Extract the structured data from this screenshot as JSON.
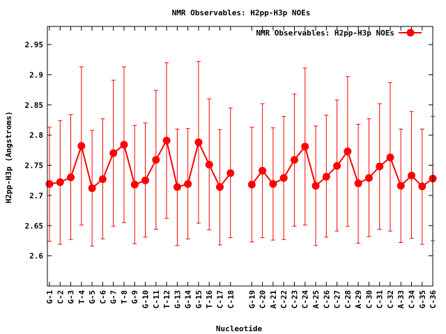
{
  "chart_data": {
    "type": "line",
    "title": "NMR Observables: H2pp-H3p NOEs",
    "xlabel": "Nucleotide",
    "ylabel": "H2pp-H3p (Angstroms)",
    "ylim": [
      2.55,
      2.98
    ],
    "yticks": [
      2.6,
      2.65,
      2.7,
      2.75,
      2.8,
      2.85,
      2.9,
      2.95
    ],
    "ytick_labels": [
      "2.6",
      "2.65",
      "2.7",
      "2.75",
      "2.8",
      "2.85",
      "2.9",
      "2.95"
    ],
    "grid": false,
    "legend_position": "top-right",
    "line_color": "#ff0000",
    "categories": [
      "G-1",
      "C-2",
      "G-3",
      "T-4",
      "G-5",
      "C-6",
      "G-7",
      "T-8",
      "G-9",
      "G-10",
      "C-11",
      "T-12",
      "G-13",
      "G-14",
      "G-15",
      "T-16",
      "C-17",
      "C-18",
      "G-19",
      "C-20",
      "A-21",
      "C-22",
      "C-23",
      "C-24",
      "A-25",
      "C-26",
      "C-27",
      "C-28",
      "A-29",
      "C-30",
      "C-31",
      "C-32",
      "A-33",
      "C-34",
      "G-35",
      "C-36"
    ],
    "series": [
      {
        "name": "NMR Observables: H2pp-H3p NOEs",
        "segments": [
          {
            "from": 0,
            "values": [
              2.719,
              2.722,
              2.73,
              2.782,
              2.712,
              2.727,
              2.77,
              2.784,
              2.718,
              2.725,
              2.759,
              2.791,
              2.714,
              2.719,
              2.788,
              2.751,
              2.714,
              2.737
            ],
            "err_low": [
              2.624,
              2.619,
              2.627,
              2.651,
              2.616,
              2.628,
              2.649,
              2.655,
              2.62,
              2.631,
              2.644,
              2.662,
              2.617,
              2.628,
              2.654,
              2.643,
              2.618,
              2.63
            ],
            "err_high": [
              2.813,
              2.824,
              2.834,
              2.913,
              2.808,
              2.827,
              2.891,
              2.913,
              2.816,
              2.82,
              2.874,
              2.92,
              2.81,
              2.811,
              2.922,
              2.86,
              2.809,
              2.845
            ]
          },
          {
            "from": 18,
            "values": [
              2.718,
              2.741,
              2.719,
              2.729,
              2.759,
              2.781,
              2.716,
              2.731,
              2.749,
              2.773,
              2.72,
              2.729,
              2.748,
              2.763,
              2.716,
              2.733,
              2.715,
              2.728
            ],
            "err_low": [
              2.623,
              2.63,
              2.626,
              2.627,
              2.649,
              2.651,
              2.617,
              2.631,
              2.641,
              2.649,
              2.621,
              2.632,
              2.644,
              2.641,
              2.622,
              2.629,
              2.619,
              2.625
            ],
            "err_high": [
              2.813,
              2.852,
              2.812,
              2.831,
              2.868,
              2.911,
              2.815,
              2.833,
              2.858,
              2.897,
              2.818,
              2.827,
              2.852,
              2.887,
              2.81,
              2.839,
              2.81,
              2.831
            ]
          }
        ]
      }
    ]
  }
}
